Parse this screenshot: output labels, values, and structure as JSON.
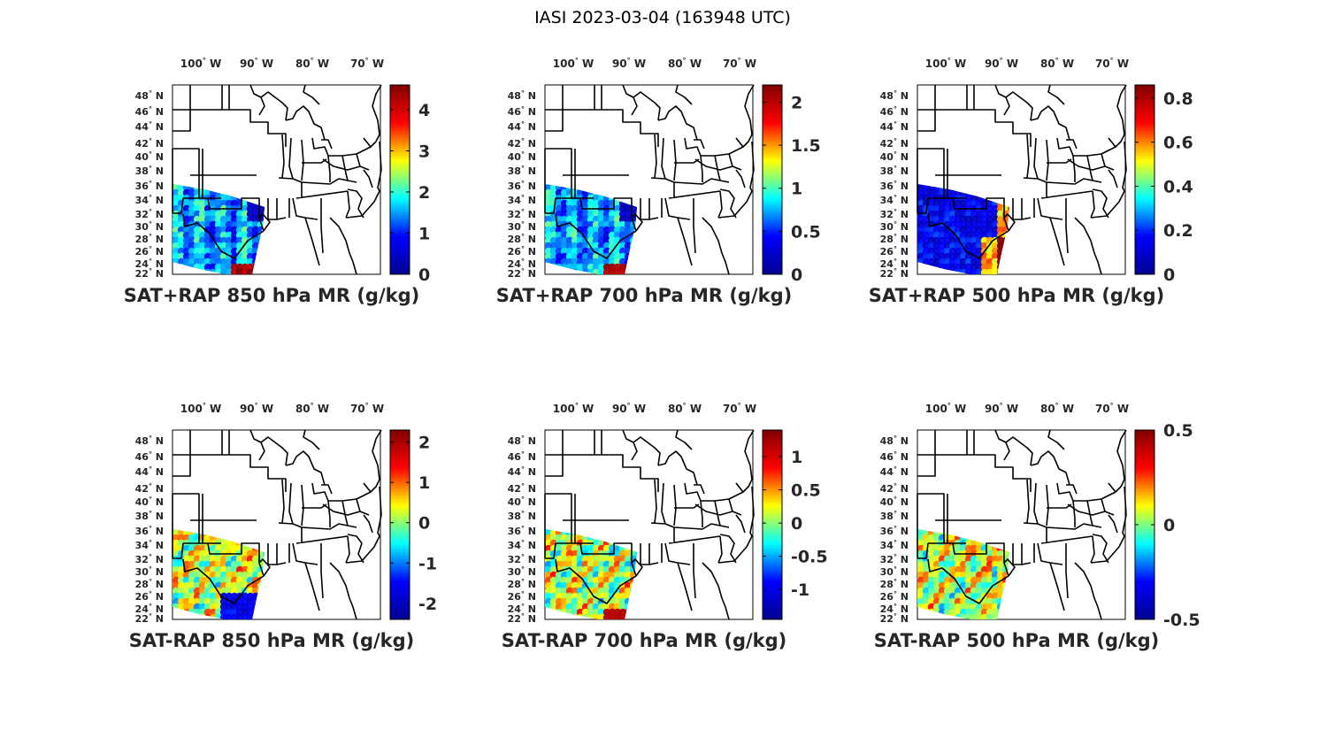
{
  "figure": {
    "suptitle": "IASI 2023-03-04 (163948 UTC)",
    "colormap": "jet",
    "colormap_stops": [
      "#00008f",
      "#0000ff",
      "#00ffff",
      "#ffff00",
      "#ff0000",
      "#800000"
    ]
  },
  "map": {
    "lon_labels": [
      {
        "value": "100",
        "hemi": "W"
      },
      {
        "value": "90",
        "hemi": "W"
      },
      {
        "value": "80",
        "hemi": "W"
      },
      {
        "value": "70",
        "hemi": "W"
      }
    ],
    "lat_labels": [
      {
        "value": "48",
        "hemi": "N"
      },
      {
        "value": "46",
        "hemi": "N"
      },
      {
        "value": "44",
        "hemi": "N"
      },
      {
        "value": "42",
        "hemi": "N"
      },
      {
        "value": "40",
        "hemi": "N"
      },
      {
        "value": "38",
        "hemi": "N"
      },
      {
        "value": "36",
        "hemi": "N"
      },
      {
        "value": "34",
        "hemi": "N"
      },
      {
        "value": "32",
        "hemi": "N"
      },
      {
        "value": "30",
        "hemi": "N"
      },
      {
        "value": "28",
        "hemi": "N"
      },
      {
        "value": "26",
        "hemi": "N"
      },
      {
        "value": "24",
        "hemi": "N"
      },
      {
        "value": "22",
        "hemi": "N"
      }
    ]
  },
  "panels": [
    {
      "title": "SAT+RAP 850 hPa MR (g/kg)",
      "colorbar": {
        "ticks": [
          "0",
          "1",
          "2",
          "3",
          "4"
        ],
        "min": 0,
        "max": 4.6
      },
      "field": "total"
    },
    {
      "title": "SAT+RAP 700 hPa MR (g/kg)",
      "colorbar": {
        "ticks": [
          "0",
          "0.5",
          "1",
          "1.5",
          "2"
        ],
        "min": 0,
        "max": 2.2
      },
      "field": "total"
    },
    {
      "title": "SAT+RAP 500 hPa MR (g/kg)",
      "colorbar": {
        "ticks": [
          "0",
          "0.2",
          "0.4",
          "0.6",
          "0.8"
        ],
        "min": 0,
        "max": 0.86
      },
      "field": "total"
    },
    {
      "title": "SAT-RAP 850 hPa MR (g/kg)",
      "colorbar": {
        "ticks": [
          "-2",
          "-1",
          "0",
          "1",
          "2"
        ],
        "min": -2.4,
        "max": 2.3
      },
      "field": "diff"
    },
    {
      "title": "SAT-RAP 700 hPa MR (g/kg)",
      "colorbar": {
        "ticks": [
          "-1",
          "-0.5",
          "0",
          "0.5",
          "1"
        ],
        "min": -1.45,
        "max": 1.4
      },
      "field": "diff"
    },
    {
      "title": "SAT-RAP 500 hPa MR (g/kg)",
      "colorbar": {
        "ticks": [
          "-0.5",
          "0",
          "0.5"
        ],
        "min": -0.5,
        "max": 0.5
      },
      "field": "diff"
    }
  ]
}
